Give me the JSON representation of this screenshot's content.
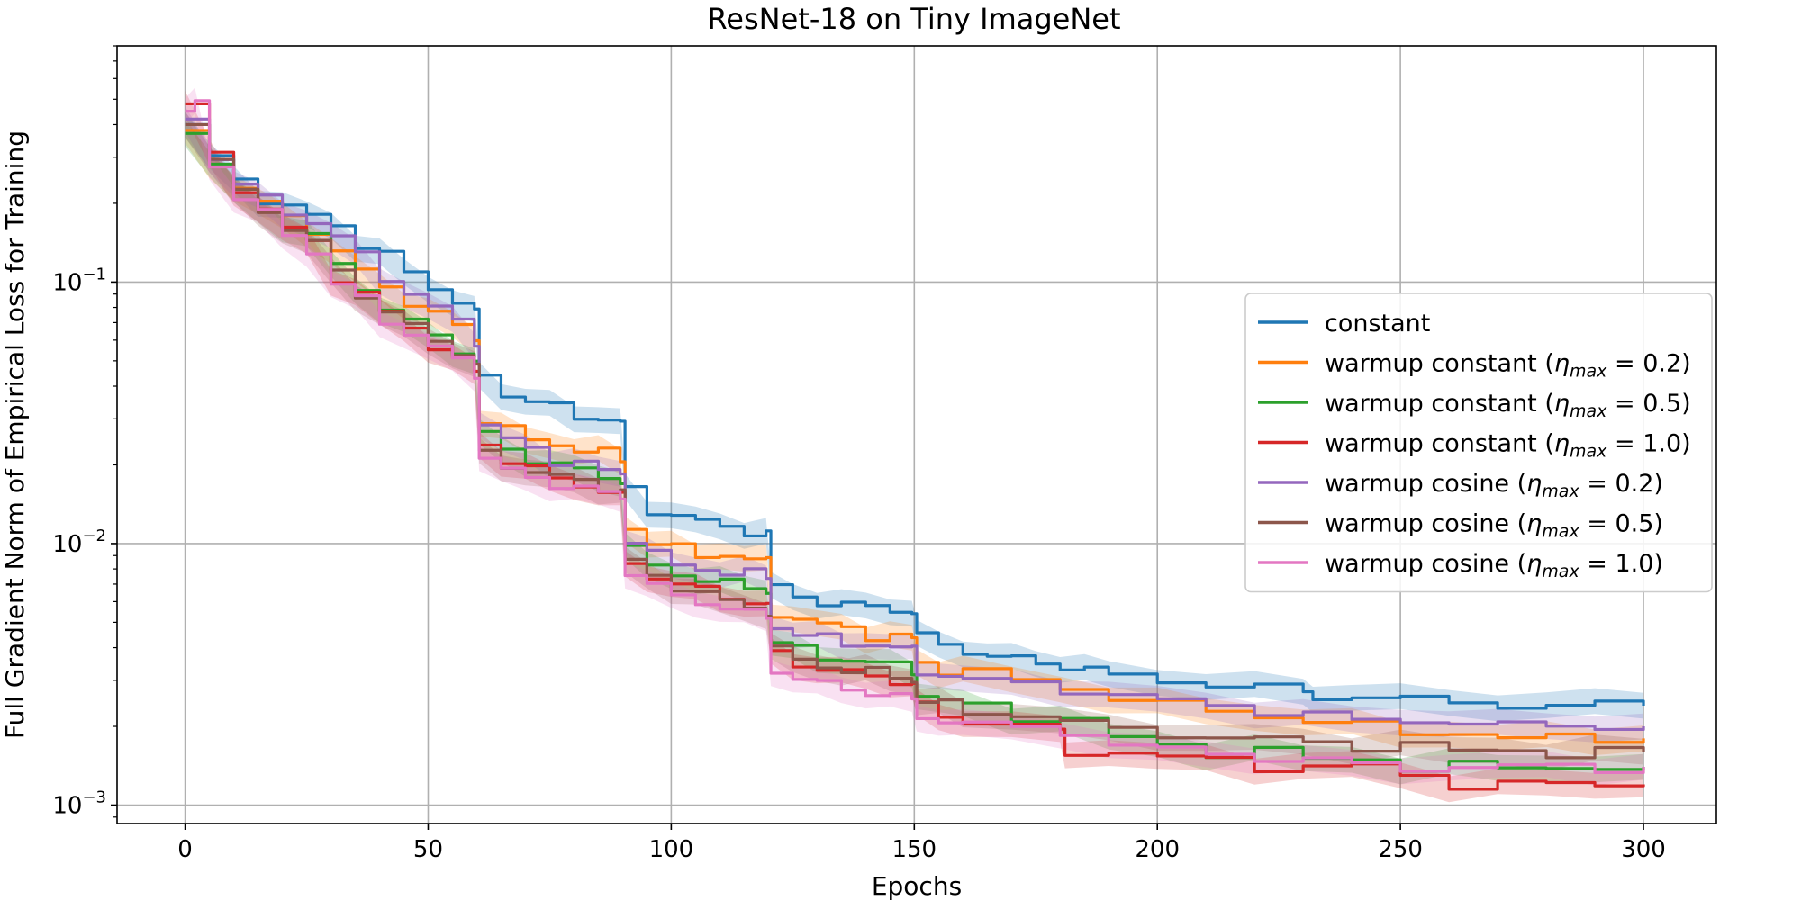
{
  "chart_data": {
    "type": "line",
    "title": "ResNet-18 on Tiny ImageNet",
    "xlabel": "Epochs",
    "ylabel": "Full Gradient Norm of Empirical Loss for Training",
    "xlim": [
      -14,
      315
    ],
    "ylim": [
      0.00085,
      0.8
    ],
    "yscale": "log",
    "grid": true,
    "legend_position": "center-right",
    "x_ticks": [
      0,
      50,
      100,
      150,
      200,
      250,
      300
    ],
    "x_tick_labels": [
      "0",
      "50",
      "100",
      "150",
      "200",
      "250",
      "300"
    ],
    "y_ticks": [
      0.001,
      0.01,
      0.1
    ],
    "y_tick_labels": [
      {
        "base": "10",
        "exp": "−3"
      },
      {
        "base": "10",
        "exp": "−2"
      },
      {
        "base": "10",
        "exp": "−1"
      }
    ],
    "series": [
      {
        "name": "constant",
        "name_parts": [
          "constant"
        ],
        "color": "#1f77b4",
        "x": [
          0,
          5,
          10,
          15,
          20,
          25,
          30,
          35,
          40,
          45,
          50,
          55,
          59.5,
          60.5,
          65,
          70,
          75,
          80,
          85,
          89.5,
          90.5,
          95,
          100,
          105,
          110,
          115,
          119.5,
          120.5,
          125,
          130,
          135,
          140,
          145,
          149.5,
          150.5,
          155,
          160,
          165,
          170,
          175,
          180,
          185,
          190,
          200,
          210,
          220,
          230,
          232,
          240,
          250,
          260,
          270,
          280,
          290,
          300
        ],
        "y": [
          0.4,
          0.3,
          0.245,
          0.21,
          0.19,
          0.18,
          0.165,
          0.14,
          0.125,
          0.11,
          0.095,
          0.085,
          0.075,
          0.045,
          0.037,
          0.035,
          0.033,
          0.031,
          0.03,
          0.029,
          0.016,
          0.0135,
          0.0128,
          0.0121,
          0.0115,
          0.0112,
          0.011,
          0.0068,
          0.0063,
          0.006,
          0.0058,
          0.0057,
          0.0056,
          0.0055,
          0.0044,
          0.0041,
          0.0039,
          0.0037,
          0.0036,
          0.0035,
          0.0034,
          0.0033,
          0.0031,
          0.003,
          0.0029,
          0.0028,
          0.0027,
          0.0026,
          0.0026,
          0.0025,
          0.0025,
          0.0024,
          0.0024,
          0.0024,
          0.0024
        ]
      },
      {
        "name": "warmup constant (η_max = 0.2)",
        "name_parts": [
          "warmup constant (",
          "η",
          "max",
          " = 0.2)"
        ],
        "color": "#ff7f0e",
        "x": [
          0,
          5,
          10,
          15,
          20,
          25,
          30,
          35,
          40,
          45,
          50,
          55,
          59.5,
          60.5,
          65,
          70,
          75,
          80,
          85,
          89.5,
          90.5,
          95,
          100,
          105,
          110,
          115,
          119.5,
          120.5,
          125,
          130,
          135,
          140,
          145,
          149.5,
          150.5,
          155,
          160,
          170,
          180,
          190,
          200,
          210,
          220,
          230,
          240,
          250,
          260,
          270,
          280,
          290,
          300
        ],
        "y": [
          0.38,
          0.29,
          0.23,
          0.2,
          0.175,
          0.16,
          0.13,
          0.11,
          0.095,
          0.085,
          0.075,
          0.068,
          0.06,
          0.03,
          0.027,
          0.025,
          0.024,
          0.023,
          0.022,
          0.021,
          0.0115,
          0.01,
          0.0095,
          0.0092,
          0.009,
          0.0087,
          0.0085,
          0.0055,
          0.0051,
          0.0049,
          0.0047,
          0.0045,
          0.0044,
          0.0043,
          0.0035,
          0.0033,
          0.0032,
          0.003,
          0.0028,
          0.0026,
          0.0024,
          0.0023,
          0.0022,
          0.0021,
          0.002,
          0.0019,
          0.0019,
          0.0018,
          0.0018,
          0.0018,
          0.0018
        ]
      },
      {
        "name": "warmup constant (η_max = 0.5)",
        "name_parts": [
          "warmup constant (",
          "η",
          "max",
          " = 0.5)"
        ],
        "color": "#2ca02c",
        "x": [
          0,
          5,
          10,
          15,
          20,
          25,
          30,
          35,
          40,
          45,
          50,
          55,
          59.5,
          60.5,
          65,
          70,
          75,
          80,
          85,
          89.5,
          90.5,
          95,
          100,
          105,
          110,
          115,
          119.5,
          120.5,
          125,
          130,
          135,
          140,
          145,
          149.5,
          150.5,
          155,
          160,
          170,
          180,
          190,
          200,
          210,
          220,
          230,
          240,
          250,
          260,
          270,
          280,
          290,
          300
        ],
        "y": [
          0.37,
          0.28,
          0.22,
          0.19,
          0.165,
          0.15,
          0.115,
          0.095,
          0.08,
          0.07,
          0.062,
          0.055,
          0.05,
          0.026,
          0.023,
          0.021,
          0.02,
          0.019,
          0.018,
          0.0175,
          0.0095,
          0.0082,
          0.0077,
          0.0073,
          0.007,
          0.0068,
          0.0066,
          0.0042,
          0.0039,
          0.0037,
          0.0036,
          0.0035,
          0.0034,
          0.0033,
          0.0026,
          0.0025,
          0.0024,
          0.0022,
          0.0021,
          0.0018,
          0.0017,
          0.0016,
          0.0016,
          0.0015,
          0.0015,
          0.0014,
          0.0014,
          0.0014,
          0.0014,
          0.0014,
          0.0014
        ]
      },
      {
        "name": "warmup constant (η_max = 1.0)",
        "name_parts": [
          "warmup constant (",
          "η",
          "max",
          " = 1.0)"
        ],
        "color": "#d62728",
        "x": [
          0,
          5,
          10,
          15,
          20,
          25,
          30,
          35,
          40,
          45,
          50,
          55,
          59.5,
          60.5,
          65,
          70,
          75,
          80,
          85,
          89.5,
          90.5,
          95,
          100,
          105,
          110,
          115,
          119.5,
          120.5,
          125,
          130,
          135,
          140,
          145,
          149.5,
          150.5,
          155,
          160,
          170,
          180,
          181,
          190,
          200,
          210,
          220,
          230,
          240,
          250,
          260,
          270,
          280,
          290,
          300
        ],
        "y": [
          0.48,
          0.3,
          0.23,
          0.19,
          0.16,
          0.14,
          0.105,
          0.09,
          0.076,
          0.066,
          0.058,
          0.05,
          0.045,
          0.024,
          0.021,
          0.019,
          0.0178,
          0.0168,
          0.016,
          0.015,
          0.0085,
          0.0075,
          0.007,
          0.0066,
          0.0063,
          0.006,
          0.0058,
          0.0038,
          0.0035,
          0.0033,
          0.0032,
          0.0031,
          0.003,
          0.0029,
          0.0024,
          0.0022,
          0.0021,
          0.002,
          0.0019,
          0.0016,
          0.0016,
          0.0015,
          0.0015,
          0.0014,
          0.0014,
          0.0014,
          0.0013,
          0.0012,
          0.0012,
          0.0012,
          0.0012,
          0.0012
        ]
      },
      {
        "name": "warmup cosine (η_max = 0.2)",
        "name_parts": [
          "warmup cosine (",
          "η",
          "max",
          " = 0.2)"
        ],
        "color": "#9467bd",
        "x": [
          0,
          5,
          10,
          15,
          20,
          25,
          30,
          35,
          40,
          45,
          50,
          55,
          59.5,
          60.5,
          65,
          70,
          75,
          80,
          85,
          89.5,
          90.5,
          95,
          100,
          105,
          110,
          115,
          119.5,
          120.5,
          125,
          130,
          135,
          140,
          145,
          149.5,
          150.5,
          155,
          160,
          170,
          180,
          190,
          200,
          210,
          220,
          230,
          240,
          250,
          260,
          270,
          280,
          290,
          300
        ],
        "y": [
          0.42,
          0.3,
          0.24,
          0.205,
          0.185,
          0.17,
          0.15,
          0.125,
          0.105,
          0.09,
          0.08,
          0.07,
          0.06,
          0.028,
          0.025,
          0.023,
          0.021,
          0.02,
          0.019,
          0.0185,
          0.0105,
          0.009,
          0.0083,
          0.008,
          0.0078,
          0.0076,
          0.0075,
          0.0048,
          0.0045,
          0.0043,
          0.0042,
          0.0041,
          0.004,
          0.0039,
          0.0033,
          0.0031,
          0.003,
          0.0029,
          0.0028,
          0.0026,
          0.0025,
          0.0024,
          0.0023,
          0.0022,
          0.0021,
          0.0021,
          0.0021,
          0.002,
          0.002,
          0.002,
          0.002
        ]
      },
      {
        "name": "warmup cosine (η_max = 0.5)",
        "name_parts": [
          "warmup cosine (",
          "η",
          "max",
          " = 0.5)"
        ],
        "color": "#8c564b",
        "x": [
          0,
          5,
          10,
          15,
          20,
          25,
          30,
          35,
          40,
          45,
          50,
          55,
          59.5,
          60.5,
          65,
          70,
          75,
          80,
          85,
          89.5,
          90.5,
          95,
          100,
          105,
          110,
          115,
          119.5,
          120.5,
          125,
          130,
          135,
          140,
          145,
          149.5,
          150.5,
          155,
          160,
          170,
          180,
          190,
          200,
          210,
          220,
          230,
          240,
          250,
          260,
          270,
          280,
          290,
          300
        ],
        "y": [
          0.4,
          0.29,
          0.22,
          0.19,
          0.16,
          0.14,
          0.11,
          0.09,
          0.077,
          0.067,
          0.06,
          0.054,
          0.048,
          0.022,
          0.02,
          0.019,
          0.018,
          0.0172,
          0.0165,
          0.016,
          0.0085,
          0.0075,
          0.0069,
          0.0064,
          0.006,
          0.0057,
          0.0055,
          0.0039,
          0.0036,
          0.0034,
          0.0033,
          0.0032,
          0.0031,
          0.003,
          0.0025,
          0.0024,
          0.0023,
          0.0022,
          0.0021,
          0.0019,
          0.0019,
          0.0018,
          0.0018,
          0.0017,
          0.0017,
          0.0017,
          0.0016,
          0.0016,
          0.0016,
          0.0016,
          0.0016
        ]
      },
      {
        "name": "warmup cosine (η_max = 1.0)",
        "name_parts": [
          "warmup cosine (",
          "η",
          "max",
          " = 1.0)"
        ],
        "color": "#e377c2",
        "x": [
          0,
          2,
          5,
          10,
          15,
          20,
          25,
          30,
          35,
          40,
          45,
          50,
          55,
          59.5,
          60.5,
          65,
          70,
          75,
          80,
          85,
          89.5,
          90.5,
          95,
          100,
          105,
          110,
          115,
          119.5,
          120.5,
          125,
          130,
          135,
          140,
          145,
          149.5,
          150.5,
          155,
          160,
          170,
          180,
          190,
          200,
          210,
          220,
          230,
          240,
          250,
          260,
          270,
          280,
          290,
          300
        ],
        "y": [
          0.45,
          0.5,
          0.28,
          0.21,
          0.18,
          0.155,
          0.13,
          0.098,
          0.085,
          0.072,
          0.063,
          0.056,
          0.05,
          0.045,
          0.021,
          0.019,
          0.0178,
          0.017,
          0.0162,
          0.0155,
          0.015,
          0.0078,
          0.0068,
          0.0063,
          0.006,
          0.0057,
          0.0054,
          0.0052,
          0.0033,
          0.003,
          0.0029,
          0.0028,
          0.0027,
          0.0026,
          0.0025,
          0.0022,
          0.0021,
          0.002,
          0.002,
          0.0019,
          0.0017,
          0.0016,
          0.0016,
          0.0015,
          0.0015,
          0.0014,
          0.0014,
          0.0014,
          0.0014,
          0.0014,
          0.0014,
          0.0014
        ]
      }
    ]
  }
}
